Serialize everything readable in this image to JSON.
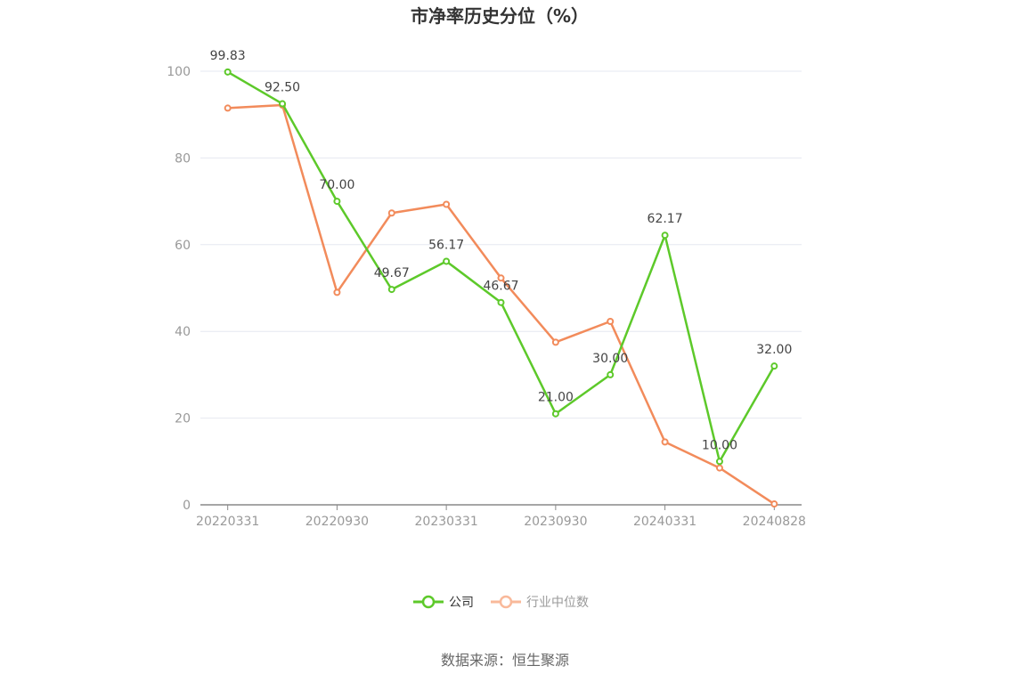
{
  "chart_data": {
    "type": "line",
    "title": "市净率历史分位（%）",
    "xlabel": "",
    "ylabel": "",
    "ylim": [
      0,
      100
    ],
    "y_ticks": [
      0,
      20,
      40,
      60,
      80,
      100
    ],
    "x_tick_labels": [
      "20220331",
      "20220930",
      "20230331",
      "20230930",
      "20240331",
      "20240828"
    ],
    "categories": [
      "20220331",
      "",
      "20220930",
      "",
      "20230331",
      "",
      "20230930",
      "",
      "20240331",
      "",
      "20240828"
    ],
    "series": [
      {
        "name": "公司",
        "color": "#5dc92a",
        "values": [
          99.83,
          92.5,
          70.0,
          49.67,
          56.17,
          46.67,
          21.0,
          30.0,
          62.17,
          10.0,
          32.0
        ],
        "labels": [
          "99.83",
          "92.50",
          "70.00",
          "49.67",
          "56.17",
          "46.67",
          "21.00",
          "30.00",
          "62.17",
          "10.00",
          "32.00"
        ]
      },
      {
        "name": "行业中位数",
        "color": "#f28b5b",
        "values": [
          91.5,
          92.2,
          49.0,
          67.3,
          69.3,
          52.3,
          37.5,
          42.3,
          14.5,
          8.5,
          0.2
        ]
      }
    ],
    "grid": true,
    "legend_position": "bottom-center"
  },
  "legend": {
    "company": "公司",
    "industry": "行业中位数"
  },
  "source": "数据来源：恒生聚源",
  "colors": {
    "company": "#5dc92a",
    "industry": "#f28b5b",
    "industry_legend": "#f9b99a",
    "grid": "#e6e8f0",
    "axis": "#999999"
  }
}
